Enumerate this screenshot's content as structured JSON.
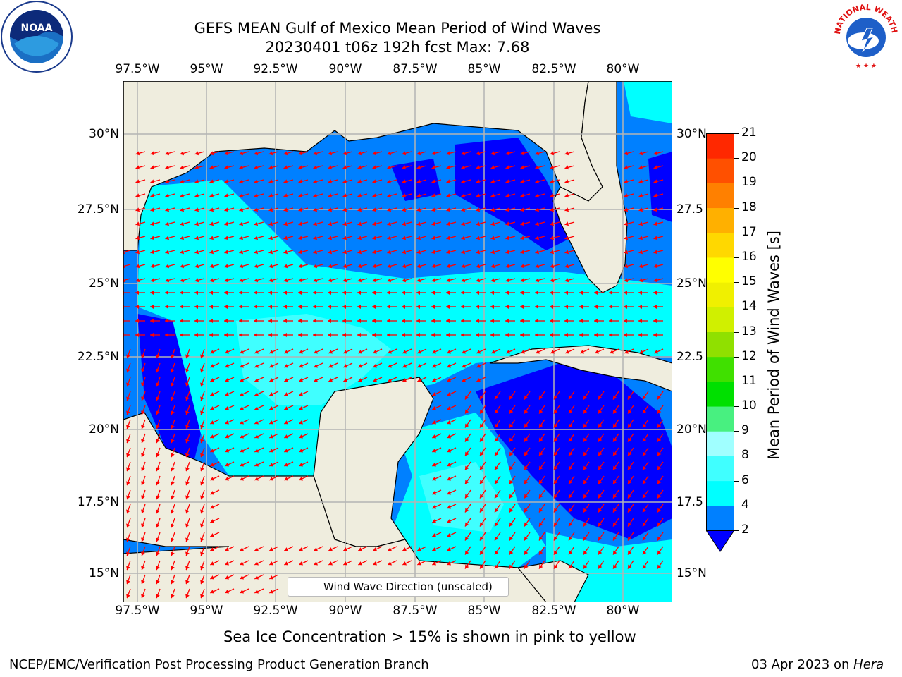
{
  "title": {
    "line1": "GEFS MEAN Gulf of Mexico Mean Period of Wind Waves",
    "line2": "20230401 t06z 192h fcst   Max: 7.68"
  },
  "map": {
    "lon_labels": [
      "97.5°W",
      "95°W",
      "92.5°W",
      "90°W",
      "87.5°W",
      "85°W",
      "82.5°W",
      "80°W"
    ],
    "lat_labels_left": [
      "30°N",
      "27.5°N",
      "25°N",
      "22.5°N",
      "20°N",
      "17.5°N",
      "15°N"
    ],
    "lat_labels_right": [
      "30°N",
      "27.5",
      "25°N",
      "22.5",
      "20°N",
      "17.5",
      "15°N"
    ],
    "land_color": "#efedde",
    "grid_color": "#b4b4b4",
    "arrow_color": "#ff0000",
    "legend_label": "Wind Wave Direction (unscaled)"
  },
  "colorbar": {
    "label": "Mean Period of Wind Waves [s]",
    "ticks": [
      "2",
      "4",
      "6",
      "8",
      "9",
      "10",
      "11",
      "12",
      "13",
      "14",
      "15",
      "16",
      "17",
      "18",
      "19",
      "20",
      "21"
    ],
    "colors": [
      "#0080ff",
      "#00ffff",
      "#40ffff",
      "#a0ffff",
      "#48f080",
      "#00e000",
      "#40e000",
      "#90e000",
      "#d0f000",
      "#f0f000",
      "#ffff00",
      "#ffd800",
      "#ffb000",
      "#ff8000",
      "#ff5000",
      "#ff2800",
      "#ff0000"
    ],
    "under_color": "#0000ff"
  },
  "notes": {
    "ice": "Sea Ice Concentration > 15% is shown in pink to yellow"
  },
  "footer": {
    "left": "NCEP/EMC/Verification Post Processing Product Generation Branch",
    "date": "03 Apr 2023 on ",
    "machine": "Hera"
  },
  "logos": {
    "noaa": "NOAA",
    "nws_text": "NATIONAL WEATHER SERVICE"
  }
}
